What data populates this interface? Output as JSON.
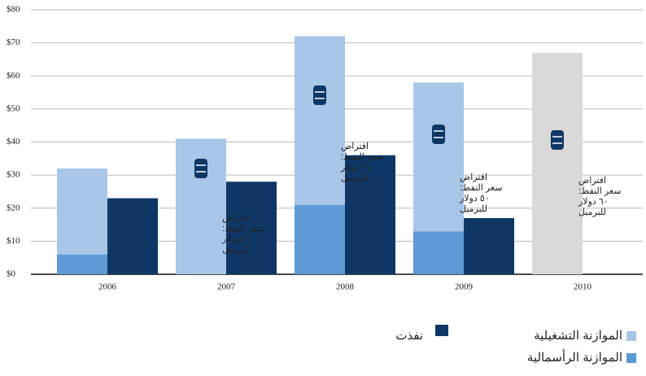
{
  "chart_data": {
    "type": "bar",
    "categories": [
      "2006",
      "2007",
      "2008",
      "2009",
      "2010"
    ],
    "series": [
      {
        "name": "الموازنة الرأسمالية",
        "color": "#5e9ad6",
        "values": [
          6,
          0,
          21,
          13,
          null
        ],
        "stack": "budget"
      },
      {
        "name": "الموازنة التشغيلية",
        "color": "#a8c6e8",
        "values": [
          26,
          41,
          51,
          45,
          67
        ],
        "stack": "budget",
        "point_colors": [
          null,
          null,
          null,
          null,
          "#d9d9d9"
        ]
      },
      {
        "name": "نفذت",
        "color": "#0e3766",
        "values": [
          23,
          28,
          36,
          17,
          null
        ],
        "stack": "executed"
      }
    ],
    "ylim": [
      0,
      80
    ],
    "yticks": [
      {
        "value": 0,
        "label": "$0"
      },
      {
        "value": 10,
        "label": "$10"
      },
      {
        "value": 20,
        "label": "$20"
      },
      {
        "value": 30,
        "label": "$30"
      },
      {
        "value": 40,
        "label": "$40"
      },
      {
        "value": 50,
        "label": "$50"
      },
      {
        "value": 60,
        "label": "$60"
      },
      {
        "value": 70,
        "label": "$70"
      },
      {
        "value": 80,
        "label": "$80"
      }
    ],
    "grid": true,
    "annotations": [
      {
        "category": "2007",
        "lines": [
          "افتراض",
          "سعر النفط:",
          "٥٠ دولار",
          "للبرميل"
        ]
      },
      {
        "category": "2008",
        "lines": [
          "افتراض",
          "سعر النفط:",
          "٩١ دولار",
          "للبرميل"
        ]
      },
      {
        "category": "2009",
        "lines": [
          "افتراض",
          "سعر النفط:",
          "٥٠ دولار",
          "للبرميل"
        ]
      },
      {
        "category": "2010",
        "lines": [
          "افتراض",
          "سعر النفط:",
          "٦٠ دولار",
          "للبرميل"
        ]
      }
    ]
  }
}
